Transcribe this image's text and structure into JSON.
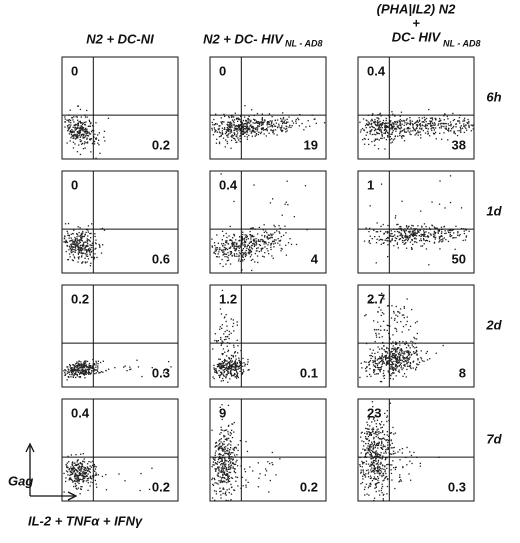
{
  "columns": [
    {
      "title": "N2 + DC-NI"
    },
    {
      "title": "N2 + DC- HIV",
      "subscript": "NL - AD8"
    },
    {
      "title_lines": [
        "(PHA|IL2) N2",
        "+",
        "DC- HIV"
      ],
      "subscript": "NL - AD8"
    }
  ],
  "rows": [
    {
      "label": "6h",
      "panels": [
        {
          "upper_left": 0,
          "lower_right": 0.2
        },
        {
          "upper_left": 0,
          "lower_right": 19
        },
        {
          "upper_left": 0.4,
          "lower_right": 38
        }
      ]
    },
    {
      "label": "1d",
      "panels": [
        {
          "upper_left": 0,
          "lower_right": 0.6
        },
        {
          "upper_left": 0.4,
          "lower_right": 4
        },
        {
          "upper_left": 1,
          "lower_right": 50
        }
      ]
    },
    {
      "label": "2d",
      "panels": [
        {
          "upper_left": 0.2,
          "lower_right": 0.3
        },
        {
          "upper_left": 1.2,
          "lower_right": 0.1
        },
        {
          "upper_left": 2.7,
          "lower_right": 8
        }
      ]
    },
    {
      "label": "7d",
      "panels": [
        {
          "upper_left": 0.4,
          "lower_right": 0.2
        },
        {
          "upper_left": 9,
          "lower_right": 0.2
        },
        {
          "upper_left": 23,
          "lower_right": 0.3
        }
      ]
    }
  ],
  "axes": {
    "y_label": "Gag",
    "x_label": "IL-2 + TNFα + IFNγ"
  }
}
